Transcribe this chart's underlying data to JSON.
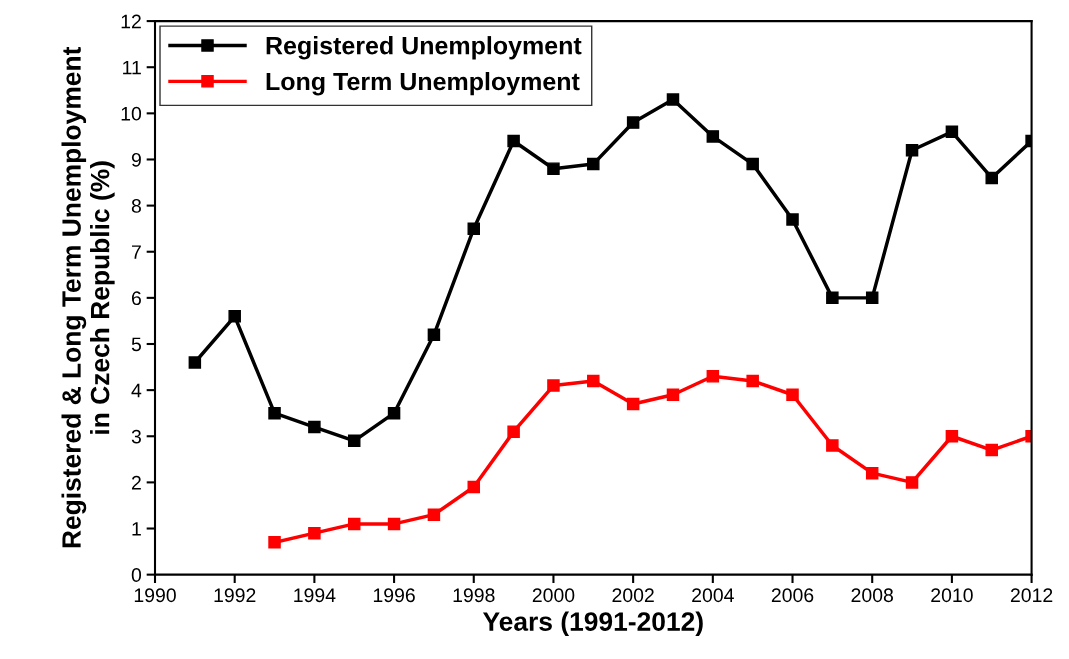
{
  "chart_data": {
    "type": "line",
    "xlabel": "Years (1991-2012)",
    "ylabel": "Registered & Long Term Unemployment\nin Czech Republic (%)",
    "x": [
      1991,
      1992,
      1993,
      1994,
      1995,
      1996,
      1997,
      1998,
      1999,
      2000,
      2001,
      2002,
      2003,
      2004,
      2005,
      2006,
      2007,
      2008,
      2009,
      2010,
      2011,
      2012
    ],
    "series": [
      {
        "name": "Registered Unemployment",
        "color": "#000000",
        "values": [
          4.6,
          5.6,
          3.5,
          3.2,
          2.9,
          3.5,
          5.2,
          7.5,
          9.4,
          8.8,
          8.9,
          9.8,
          10.3,
          9.5,
          8.9,
          7.7,
          6.0,
          6.0,
          9.2,
          9.6,
          8.6,
          9.4
        ]
      },
      {
        "name": "Long Term Unemployment",
        "color": "#ff0000",
        "values": [
          null,
          null,
          0.7,
          0.9,
          1.1,
          1.1,
          1.3,
          1.9,
          3.1,
          4.1,
          4.2,
          3.7,
          3.9,
          4.3,
          4.2,
          3.9,
          2.8,
          2.2,
          2.0,
          3.0,
          2.7,
          3.0
        ]
      }
    ],
    "xlim": [
      1990,
      2012
    ],
    "xticks": [
      1990,
      1992,
      1994,
      1996,
      1998,
      2000,
      2002,
      2004,
      2006,
      2008,
      2010,
      2012
    ],
    "ylim": [
      0,
      12
    ],
    "yticks": [
      0,
      1,
      2,
      3,
      4,
      5,
      6,
      7,
      8,
      9,
      10,
      11,
      12
    ],
    "marker": "square",
    "line_style": "solid",
    "grid": false,
    "legend": "top left"
  }
}
